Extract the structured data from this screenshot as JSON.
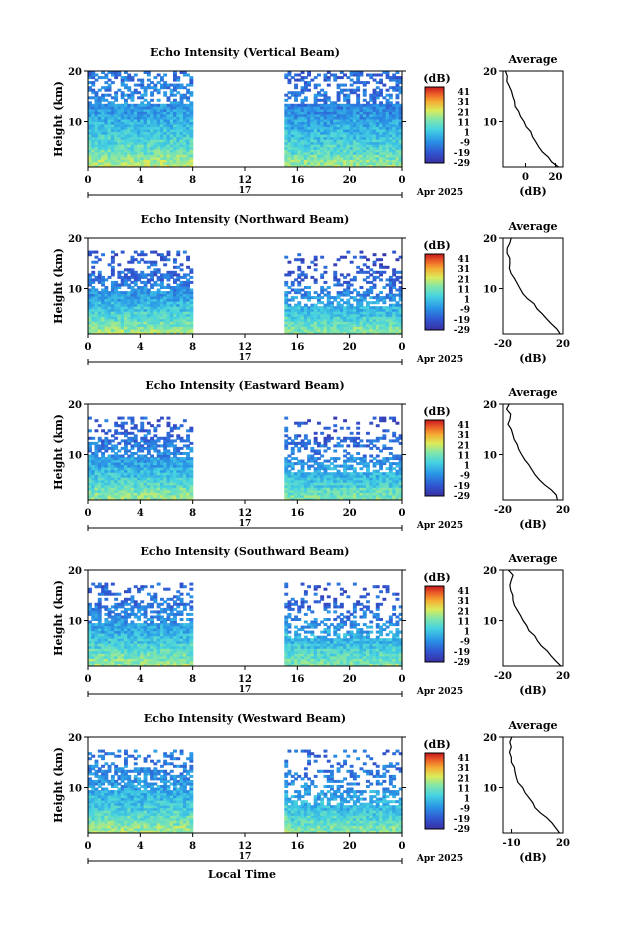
{
  "figure": {
    "xaxis_label": "Local Time",
    "date_label": "Apr 2025",
    "day_label": "17"
  },
  "colorbar": {
    "unit": "(dB)",
    "ticks": [
      "41",
      "31",
      "21",
      "11",
      "1",
      "-9",
      "-19",
      "-29"
    ],
    "range": [
      -29,
      46
    ]
  },
  "colors": {
    "low": "#3a3fb7",
    "mid_low": "#2fa8e0",
    "mid": "#7fe0c0",
    "mid_high": "#e9e85a",
    "high": "#f08a2c",
    "max": "#d7301f"
  },
  "chart_data": [
    {
      "type": "heatmap",
      "title": "Echo Intensity (Vertical Beam)",
      "ylabel": "Height (km)",
      "x_ticks": [
        "0",
        "4",
        "8",
        "12",
        "16",
        "20",
        "0"
      ],
      "y_ticks": [
        "20",
        "10"
      ],
      "xlim": [
        0,
        24
      ],
      "ylim": [
        1,
        20
      ],
      "data_gap_hours": [
        8,
        15
      ],
      "profile": {
        "title": "Average",
        "xlabel": "(dB)",
        "x_ticks": [
          "0",
          "20"
        ],
        "xlim": [
          -15,
          25
        ],
        "y_ticks": [
          "20",
          "10"
        ],
        "height_km": [
          1,
          2,
          3,
          4,
          5,
          6,
          7,
          8,
          9,
          10,
          11,
          12,
          13,
          14,
          15,
          16,
          17,
          18,
          19,
          20
        ],
        "avg_db": [
          22,
          18,
          15,
          11,
          9,
          7,
          5,
          3,
          1,
          -1,
          -3,
          -5,
          -7,
          -8,
          -9,
          -10,
          -11,
          -12,
          -12,
          -13
        ]
      }
    },
    {
      "type": "heatmap",
      "title": "Echo Intensity (Northward Beam)",
      "ylabel": "Height (km)",
      "x_ticks": [
        "0",
        "4",
        "8",
        "12",
        "16",
        "20",
        "0"
      ],
      "y_ticks": [
        "20",
        "10"
      ],
      "xlim": [
        0,
        24
      ],
      "ylim": [
        1,
        20
      ],
      "data_gap_hours": [
        8,
        15
      ],
      "profile": {
        "title": "Average",
        "xlabel": "(dB)",
        "x_ticks": [
          "-20",
          "20"
        ],
        "xlim": [
          -20,
          20
        ],
        "y_ticks": [
          "20",
          "10"
        ],
        "height_km": [
          1,
          2,
          3,
          4,
          5,
          6,
          7,
          8,
          9,
          10,
          11,
          12,
          13,
          14,
          15,
          16,
          17,
          18,
          19,
          20
        ],
        "avg_db": [
          18,
          16,
          12,
          9,
          6,
          3,
          0,
          -3,
          -6,
          -9,
          -11,
          -13,
          -14,
          -15,
          -16,
          -16,
          -17,
          -17,
          -16,
          -15
        ]
      }
    },
    {
      "type": "heatmap",
      "title": "Echo Intensity (Eastward Beam)",
      "ylabel": "Height (km)",
      "x_ticks": [
        "0",
        "4",
        "8",
        "12",
        "16",
        "20",
        "0"
      ],
      "y_ticks": [
        "20",
        "10"
      ],
      "xlim": [
        0,
        24
      ],
      "ylim": [
        1,
        20
      ],
      "data_gap_hours": [
        8,
        15
      ],
      "profile": {
        "title": "Average",
        "xlabel": "(dB)",
        "x_ticks": [
          "-20",
          "20"
        ],
        "xlim": [
          -20,
          20
        ],
        "y_ticks": [
          "20",
          "10"
        ],
        "height_km": [
          1,
          2,
          3,
          4,
          5,
          6,
          7,
          8,
          9,
          10,
          11,
          12,
          13,
          14,
          15,
          16,
          17,
          18,
          19,
          20
        ],
        "avg_db": [
          17,
          15,
          12,
          8,
          5,
          2,
          0,
          -3,
          -5,
          -8,
          -10,
          -11,
          -13,
          -14,
          -15,
          -16,
          -16,
          -15,
          -17,
          -16
        ]
      }
    },
    {
      "type": "heatmap",
      "title": "Echo Intensity (Southward Beam)",
      "ylabel": "Height (km)",
      "x_ticks": [
        "0",
        "4",
        "8",
        "12",
        "16",
        "20",
        "0"
      ],
      "y_ticks": [
        "20",
        "10"
      ],
      "xlim": [
        0,
        24
      ],
      "ylim": [
        1,
        20
      ],
      "data_gap_hours": [
        8,
        15
      ],
      "profile": {
        "title": "Average",
        "xlabel": "(dB)",
        "x_ticks": [
          "-20",
          "20"
        ],
        "xlim": [
          -20,
          20
        ],
        "y_ticks": [
          "20",
          "10"
        ],
        "height_km": [
          1,
          2,
          3,
          4,
          5,
          6,
          7,
          8,
          9,
          10,
          11,
          12,
          13,
          14,
          15,
          16,
          17,
          18,
          19,
          20
        ],
        "avg_db": [
          18,
          15,
          12,
          9,
          6,
          3,
          1,
          -2,
          -4,
          -7,
          -9,
          -10,
          -12,
          -13,
          -14,
          -15,
          -16,
          -15,
          -14,
          -16
        ]
      }
    },
    {
      "type": "heatmap",
      "title": "Echo Intensity (Westward Beam)",
      "ylabel": "Height (km)",
      "x_ticks": [
        "0",
        "4",
        "8",
        "12",
        "16",
        "20",
        "0"
      ],
      "y_ticks": [
        "20",
        "10"
      ],
      "xlim": [
        0,
        24
      ],
      "ylim": [
        1,
        20
      ],
      "data_gap_hours": [
        8,
        15
      ],
      "profile": {
        "title": "Average",
        "xlabel": "(dB)",
        "x_ticks": [
          "-10",
          "20"
        ],
        "xlim": [
          -15,
          20
        ],
        "y_ticks": [
          "20",
          "10"
        ],
        "height_km": [
          1,
          2,
          3,
          4,
          5,
          6,
          7,
          8,
          9,
          10,
          11,
          12,
          13,
          14,
          15,
          16,
          17,
          18,
          19,
          20
        ],
        "avg_db": [
          18,
          16,
          13,
          10,
          7,
          4,
          2,
          0,
          -2,
          -4,
          -6,
          -7,
          -8,
          -9,
          -10,
          -10,
          -11,
          -10,
          -11,
          -10
        ]
      }
    }
  ]
}
